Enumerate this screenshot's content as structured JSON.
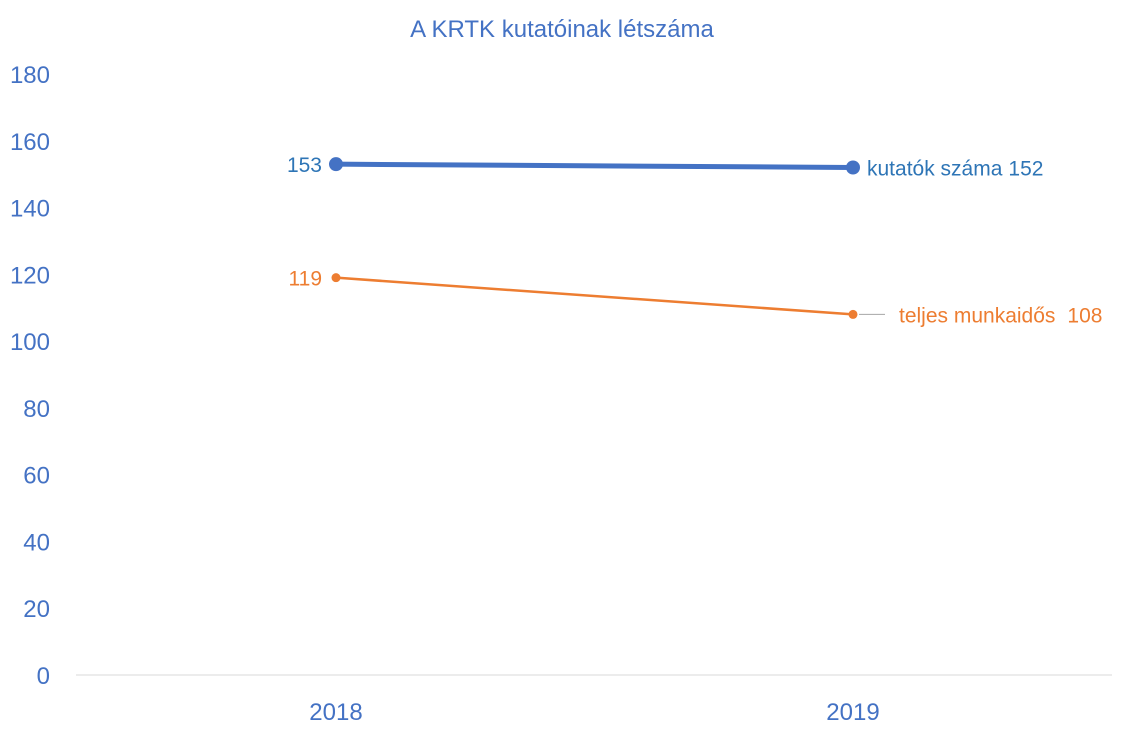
{
  "chart_data": {
    "type": "line",
    "title": "A KRTK kutatóinak létszáma",
    "x": [
      "2018",
      "2019"
    ],
    "ylim": [
      0,
      180
    ],
    "yticks": [
      "0",
      "20",
      "40",
      "60",
      "80",
      "100",
      "120",
      "140",
      "160",
      "180"
    ],
    "grid": false,
    "legend": "none",
    "series": [
      {
        "name": "kutatók száma",
        "values": [
          153,
          152
        ],
        "color": "#4472C4",
        "label_color": "#2E75B6",
        "data_labels": [
          "153",
          "152"
        ]
      },
      {
        "name": "teljes munkaidős",
        "values": [
          119,
          108
        ],
        "color": "#ED7D31",
        "label_color": "#ED7D31",
        "data_labels": [
          "119",
          "108"
        ]
      }
    ]
  }
}
